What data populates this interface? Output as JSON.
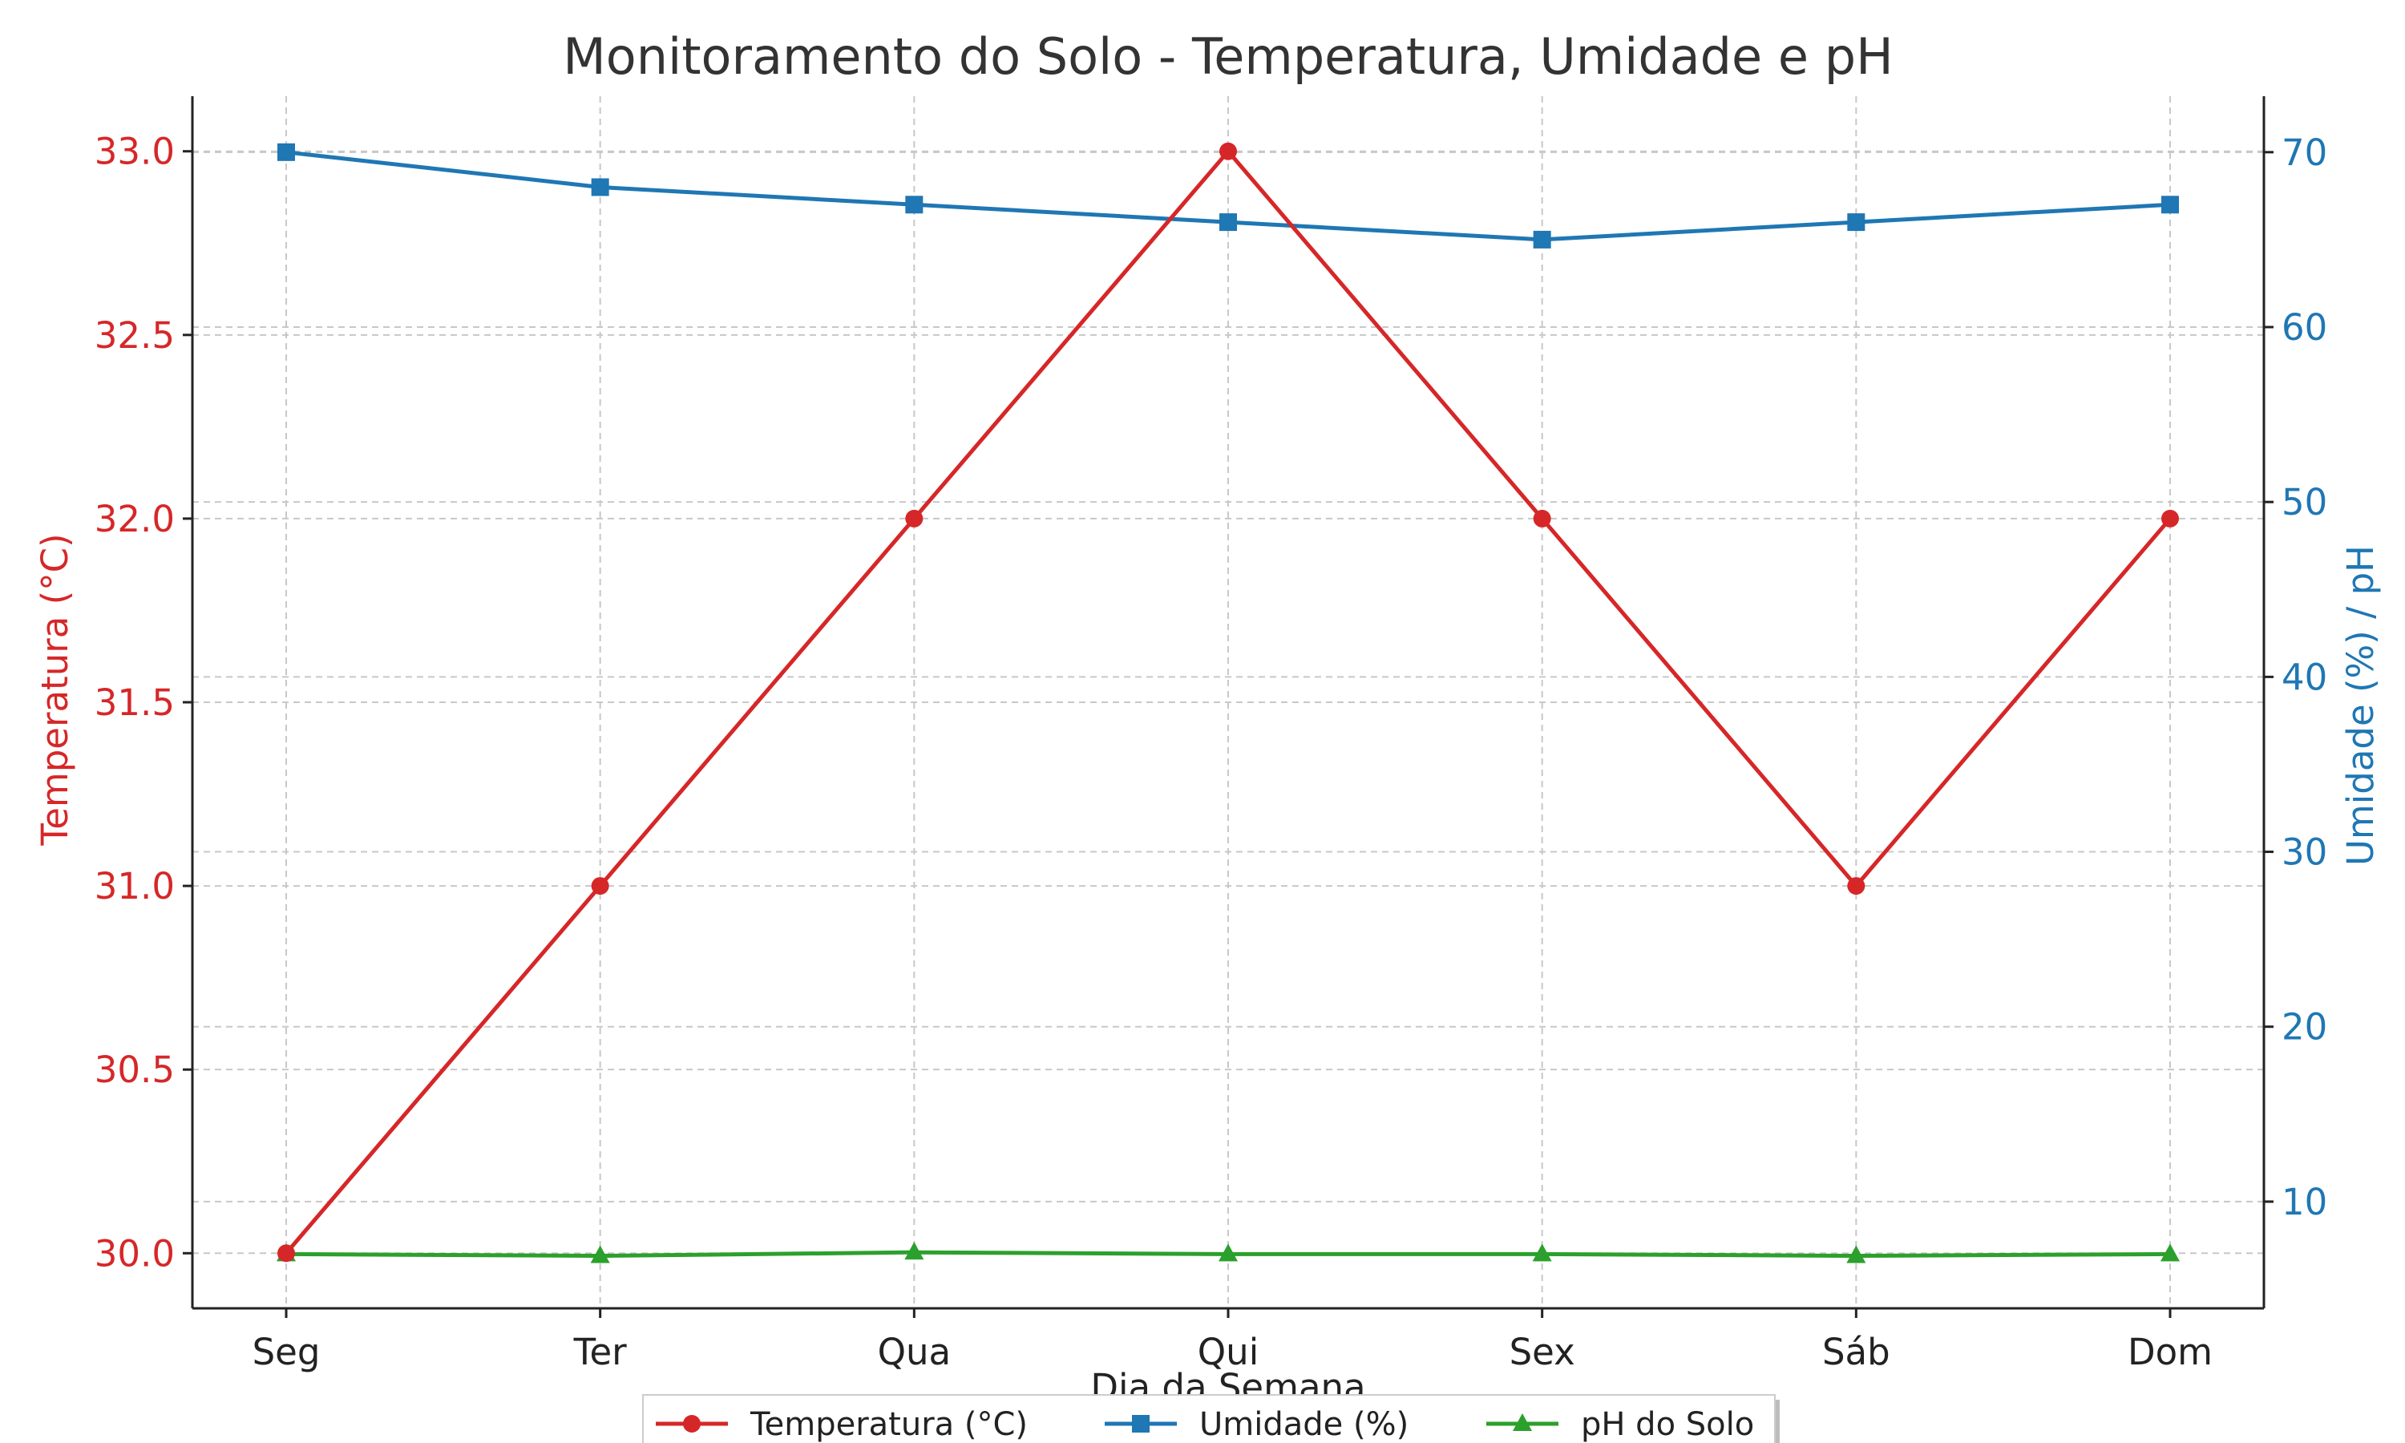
{
  "chart_data": {
    "type": "line",
    "title": "Monitoramento do Solo - Temperatura, Umidade e pH",
    "xlabel": "Dia da Semana",
    "ylabel_left": "Temperatura (°C)",
    "ylabel_right": "Umidade (%) / pH",
    "categories": [
      "Seg",
      "Ter",
      "Qua",
      "Qui",
      "Sex",
      "Sáb",
      "Dom"
    ],
    "y_left": {
      "range": [
        29.85,
        33.15
      ],
      "ticks": [
        "30.0",
        "30.5",
        "31.0",
        "31.5",
        "32.0",
        "32.5",
        "33.0"
      ]
    },
    "y_right": {
      "range": [
        3.9,
        73.2
      ],
      "ticks": [
        "10",
        "20",
        "30",
        "40",
        "50",
        "60",
        "70"
      ]
    },
    "series": [
      {
        "name": "Temperatura (°C)",
        "axis": "left",
        "color": "#d62728",
        "marker": "circle",
        "values": [
          30.0,
          31.0,
          32.0,
          33.0,
          32.0,
          31.0,
          32.0
        ]
      },
      {
        "name": "Umidade (%)",
        "axis": "right",
        "color": "#1f77b4",
        "marker": "square",
        "values": [
          70,
          68,
          67,
          66,
          65,
          66,
          67
        ]
      },
      {
        "name": "pH do Solo",
        "axis": "right",
        "color": "#2ca02c",
        "marker": "triangle",
        "values": [
          7.0,
          6.9,
          7.1,
          7.0,
          7.0,
          6.9,
          7.0
        ]
      }
    ],
    "grid": true,
    "legend_position": "bottom-center"
  }
}
